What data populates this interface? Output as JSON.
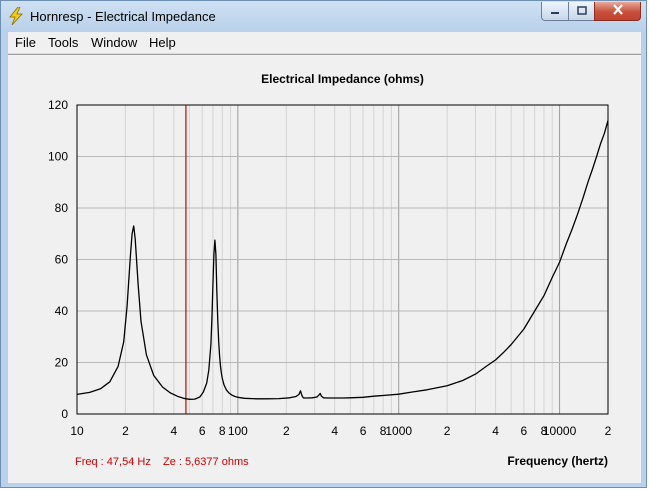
{
  "window": {
    "title": "Hornresp - Electrical Impedance",
    "controls": {
      "minimize_icon": "minimize-icon",
      "maximize_icon": "maximize-icon",
      "close_icon": "close-icon"
    },
    "app_icon": "lightning-bolt-icon"
  },
  "menu": {
    "items": [
      {
        "label": "File"
      },
      {
        "label": "Tools"
      },
      {
        "label": "Window"
      },
      {
        "label": "Help"
      }
    ]
  },
  "status": {
    "freq_text": "Freq : 47,54 Hz",
    "ze_text": "Ze : 5,6377 ohms",
    "color": "#cc0000"
  },
  "chart_data": {
    "type": "line",
    "title": "Electrical Impedance (ohms)",
    "xlabel": "Frequency (hertz)",
    "ylabel": "",
    "x_scale": "log",
    "xlim": [
      10,
      20000
    ],
    "ylim": [
      0,
      120
    ],
    "grid": true,
    "y_ticks": [
      0,
      20,
      40,
      60,
      80,
      100,
      120
    ],
    "x_ticks": [
      {
        "value": 10,
        "label": "10"
      },
      {
        "value": 20,
        "label": "2"
      },
      {
        "value": 40,
        "label": "4"
      },
      {
        "value": 60,
        "label": "6"
      },
      {
        "value": 80,
        "label": "8"
      },
      {
        "value": 100,
        "label": "100"
      },
      {
        "value": 200,
        "label": "2"
      },
      {
        "value": 400,
        "label": "4"
      },
      {
        "value": 600,
        "label": "6"
      },
      {
        "value": 800,
        "label": "8"
      },
      {
        "value": 1000,
        "label": "1000"
      },
      {
        "value": 2000,
        "label": "2"
      },
      {
        "value": 4000,
        "label": "4"
      },
      {
        "value": 6000,
        "label": "6"
      },
      {
        "value": 8000,
        "label": "8"
      },
      {
        "value": 10000,
        "label": "10000"
      },
      {
        "value": 20000,
        "label": "2"
      }
    ],
    "cursor_frequency": 47.54,
    "cursor_color": "#cc0000",
    "line_color": "#000000",
    "series": [
      {
        "x": [
          10,
          12,
          14,
          16,
          18,
          19.5,
          20.5,
          21.5,
          22,
          22.5,
          23,
          24,
          25,
          27,
          30,
          34,
          38,
          42,
          46,
          50,
          54,
          58,
          61,
          64,
          66,
          68,
          69,
          70,
          71,
          72,
          73,
          74,
          75,
          76,
          77,
          78,
          79,
          80,
          82,
          85,
          88,
          92,
          96,
          100,
          110,
          130,
          150,
          180,
          210,
          230,
          240,
          245,
          250,
          255,
          260,
          270,
          290,
          310,
          320,
          325,
          330,
          340,
          360,
          400,
          450,
          500,
          600,
          700,
          800,
          1000,
          1200,
          1500,
          2000,
          2500,
          3000,
          3500,
          4000,
          4500,
          5000,
          6000,
          7000,
          8000,
          9000,
          10000,
          11000,
          12000,
          13000,
          14000,
          15000,
          16000,
          17000,
          18000,
          19000,
          20000
        ],
        "y": [
          7.6,
          8.4,
          9.8,
          12.5,
          18.5,
          28,
          42,
          62,
          70,
          73,
          68,
          50,
          36,
          23,
          15,
          10.5,
          8.2,
          6.9,
          6.1,
          5.7,
          5.8,
          6.6,
          8.5,
          12,
          17,
          27,
          37,
          50,
          62,
          67.5,
          62,
          48,
          36,
          28,
          22.5,
          18.5,
          15.8,
          13.8,
          11.3,
          9.3,
          8.2,
          7.3,
          6.8,
          6.5,
          6.1,
          5.9,
          5.9,
          6.0,
          6.3,
          6.8,
          7.6,
          9,
          7.2,
          6.3,
          6.2,
          6.2,
          6.3,
          6.6,
          7.4,
          8,
          7.0,
          6.3,
          6.2,
          6.2,
          6.2,
          6.3,
          6.5,
          6.9,
          7.2,
          7.7,
          8.5,
          9.4,
          11,
          13,
          15.5,
          18.5,
          21,
          24,
          27,
          33,
          40,
          46,
          53,
          59,
          66,
          72,
          78,
          84,
          90,
          95,
          100,
          105,
          109,
          114
        ]
      }
    ]
  }
}
